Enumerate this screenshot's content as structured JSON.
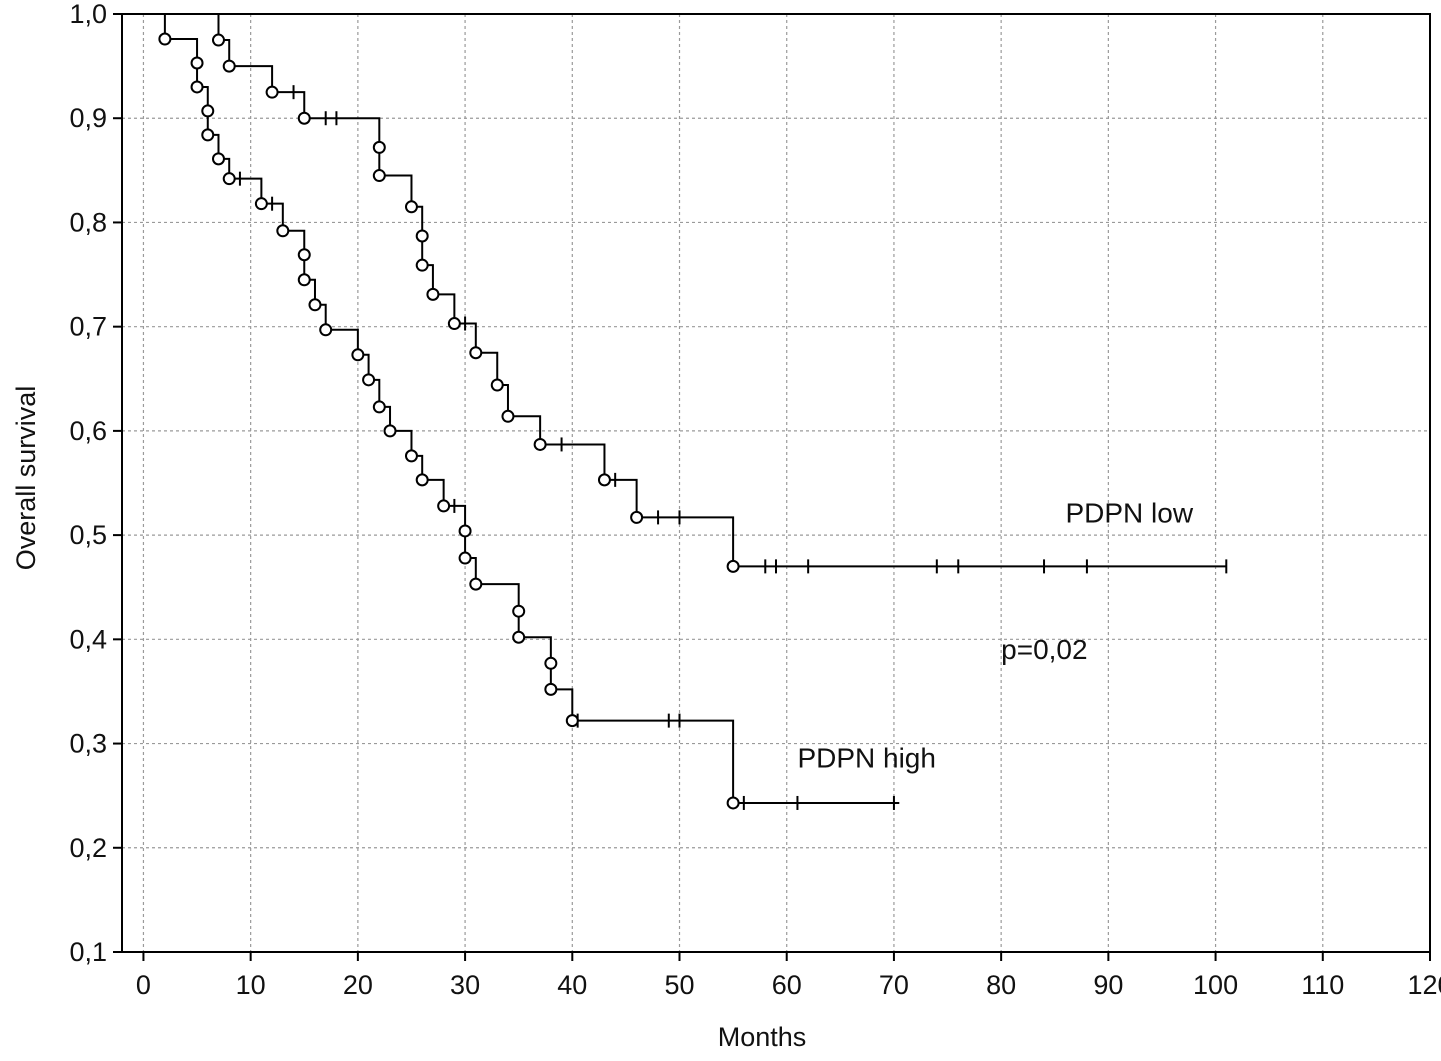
{
  "chart_data": {
    "type": "line",
    "subtype": "kaplan-meier",
    "title": "",
    "xlabel": "Months",
    "ylabel": "Overall survival",
    "xlim": [
      -2,
      120
    ],
    "ylim": [
      0.1,
      1.0
    ],
    "x_ticks": [
      0,
      10,
      20,
      30,
      40,
      50,
      60,
      70,
      80,
      90,
      100,
      110,
      120
    ],
    "y_ticks": [
      0.1,
      0.2,
      0.3,
      0.4,
      0.5,
      0.6,
      0.7,
      0.8,
      0.9,
      1.0
    ],
    "y_tick_labels": [
      "0,1",
      "0,2",
      "0,3",
      "0,4",
      "0,5",
      "0,6",
      "0,7",
      "0,8",
      "0,9",
      "1,0"
    ],
    "grid": true,
    "grid_style": "dashed",
    "line_color": "#000000",
    "series": [
      {
        "name": "PDPN low",
        "steps": [
          [
            0,
            1.0
          ],
          [
            7,
            0.975
          ],
          [
            8,
            0.95
          ],
          [
            12,
            0.925
          ],
          [
            15,
            0.9
          ],
          [
            22,
            0.872
          ],
          [
            22,
            0.845
          ],
          [
            25,
            0.815
          ],
          [
            26,
            0.787
          ],
          [
            26,
            0.759
          ],
          [
            27,
            0.731
          ],
          [
            29,
            0.703
          ],
          [
            31,
            0.675
          ],
          [
            33,
            0.644
          ],
          [
            34,
            0.614
          ],
          [
            37,
            0.587
          ],
          [
            43,
            0.553
          ],
          [
            46,
            0.517
          ],
          [
            55,
            0.47
          ]
        ],
        "events": [
          [
            7,
            0.975
          ],
          [
            8,
            0.95
          ],
          [
            12,
            0.925
          ],
          [
            15,
            0.9
          ],
          [
            22,
            0.872
          ],
          [
            22,
            0.845
          ],
          [
            25,
            0.815
          ],
          [
            26,
            0.787
          ],
          [
            26,
            0.759
          ],
          [
            27,
            0.731
          ],
          [
            29,
            0.703
          ],
          [
            31,
            0.675
          ],
          [
            33,
            0.644
          ],
          [
            34,
            0.614
          ],
          [
            37,
            0.587
          ],
          [
            43,
            0.553
          ],
          [
            46,
            0.517
          ],
          [
            55,
            0.47
          ]
        ],
        "censored": [
          [
            14,
            0.925
          ],
          [
            17,
            0.9
          ],
          [
            18,
            0.9
          ],
          [
            30,
            0.703
          ],
          [
            39,
            0.587
          ],
          [
            44,
            0.553
          ],
          [
            48,
            0.517
          ],
          [
            50,
            0.517
          ],
          [
            58,
            0.47
          ],
          [
            59,
            0.47
          ],
          [
            62,
            0.47
          ],
          [
            74,
            0.47
          ],
          [
            76,
            0.47
          ],
          [
            84,
            0.47
          ],
          [
            88,
            0.47
          ],
          [
            101,
            0.47
          ]
        ],
        "end_x": 101
      },
      {
        "name": "PDPN high",
        "steps": [
          [
            0,
            1.0
          ],
          [
            2,
            0.976
          ],
          [
            5,
            0.953
          ],
          [
            5,
            0.93
          ],
          [
            6,
            0.907
          ],
          [
            6,
            0.884
          ],
          [
            7,
            0.861
          ],
          [
            8,
            0.842
          ],
          [
            11,
            0.818
          ],
          [
            13,
            0.792
          ],
          [
            15,
            0.769
          ],
          [
            15,
            0.745
          ],
          [
            16,
            0.721
          ],
          [
            17,
            0.697
          ],
          [
            20,
            0.673
          ],
          [
            21,
            0.649
          ],
          [
            22,
            0.623
          ],
          [
            23,
            0.6
          ],
          [
            25,
            0.576
          ],
          [
            26,
            0.553
          ],
          [
            28,
            0.528
          ],
          [
            30,
            0.504
          ],
          [
            30,
            0.478
          ],
          [
            31,
            0.453
          ],
          [
            35,
            0.427
          ],
          [
            35,
            0.402
          ],
          [
            38,
            0.377
          ],
          [
            38,
            0.352
          ],
          [
            40,
            0.322
          ],
          [
            55,
            0.243
          ]
        ],
        "events": [
          [
            2,
            0.976
          ],
          [
            5,
            0.953
          ],
          [
            5,
            0.93
          ],
          [
            6,
            0.907
          ],
          [
            6,
            0.884
          ],
          [
            7,
            0.861
          ],
          [
            8,
            0.842
          ],
          [
            11,
            0.818
          ],
          [
            13,
            0.792
          ],
          [
            15,
            0.769
          ],
          [
            15,
            0.745
          ],
          [
            16,
            0.721
          ],
          [
            17,
            0.697
          ],
          [
            20,
            0.673
          ],
          [
            21,
            0.649
          ],
          [
            22,
            0.623
          ],
          [
            23,
            0.6
          ],
          [
            25,
            0.576
          ],
          [
            26,
            0.553
          ],
          [
            28,
            0.528
          ],
          [
            30,
            0.504
          ],
          [
            30,
            0.478
          ],
          [
            31,
            0.453
          ],
          [
            35,
            0.427
          ],
          [
            35,
            0.402
          ],
          [
            38,
            0.377
          ],
          [
            38,
            0.352
          ],
          [
            40,
            0.322
          ],
          [
            55,
            0.243
          ]
        ],
        "censored": [
          [
            9,
            0.842
          ],
          [
            12,
            0.818
          ],
          [
            29,
            0.528
          ],
          [
            40.5,
            0.322
          ],
          [
            49,
            0.322
          ],
          [
            50,
            0.322
          ],
          [
            56,
            0.243
          ],
          [
            61,
            0.243
          ],
          [
            70,
            0.243
          ]
        ],
        "end_x": 70.5
      }
    ],
    "annotations": [
      {
        "text": "PDPN low",
        "x": 86,
        "y": 0.512
      },
      {
        "text": "p=0,02",
        "x": 80,
        "y": 0.381
      },
      {
        "text": "PDPN high",
        "x": 61,
        "y": 0.277
      }
    ]
  }
}
